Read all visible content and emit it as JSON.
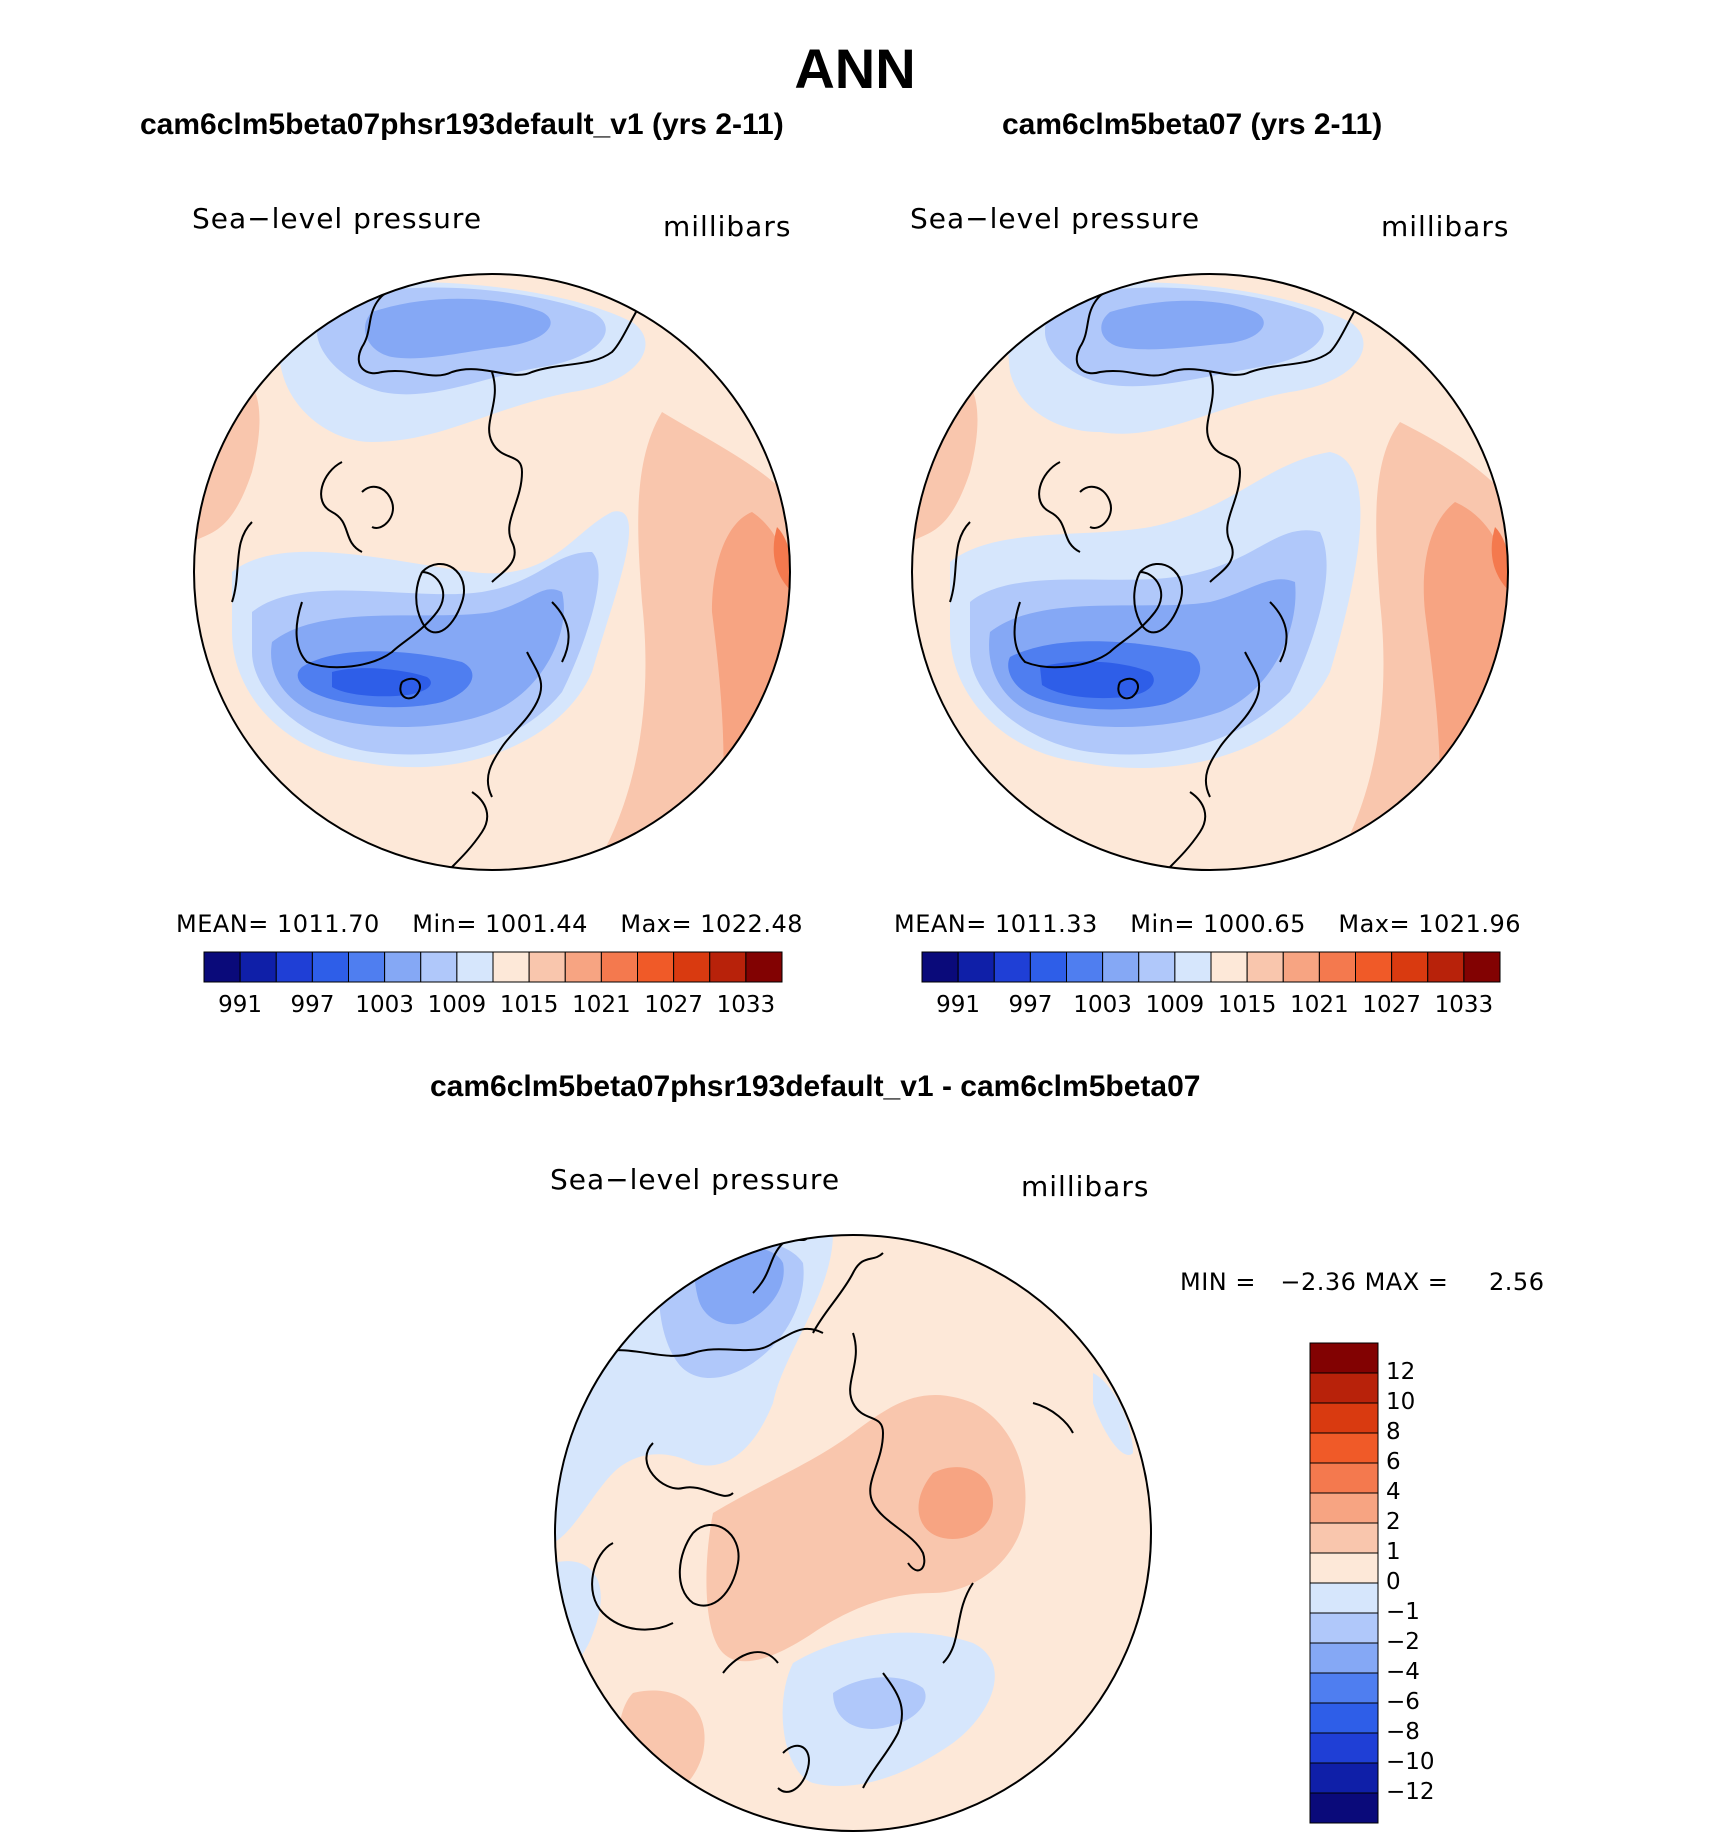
{
  "title": "ANN",
  "panels": [
    {
      "case_title": "cam6clm5beta07phsr193default_v1 (yrs 2-11)",
      "variable": "Sea−level pressure",
      "units": "millibars",
      "stats": {
        "mean_label": "MEAN=",
        "mean": "1011.70",
        "min_label": "Min=",
        "min": "1001.44",
        "max_label": "Max=",
        "max": "1022.48"
      }
    },
    {
      "case_title": "cam6clm5beta07 (yrs 2-11)",
      "variable": "Sea−level pressure",
      "units": "millibars",
      "stats": {
        "mean_label": "MEAN=",
        "mean": "1011.33",
        "min_label": "Min=",
        "min": "1000.65",
        "max_label": "Max=",
        "max": "1021.96"
      }
    }
  ],
  "difference": {
    "title": "cam6clm5beta07phsr193default_v1 - cam6clm5beta07",
    "variable": "Sea−level pressure",
    "units": "millibars",
    "stats": {
      "min_label": "MIN =",
      "min": "−2.36",
      "max_label": "MAX =",
      "max": "2.56"
    }
  },
  "colorbar_top": {
    "colors": [
      "#0a0a7a",
      "#0f1fa8",
      "#1f3fd6",
      "#2e5ee8",
      "#4f7ef0",
      "#85a8f5",
      "#b0c8fa",
      "#d6e6fc",
      "#fde8d8",
      "#f9c6ad",
      "#f7a482",
      "#f4794e",
      "#f05a28",
      "#d93a10",
      "#b8220a",
      "#820202"
    ],
    "tick_labels": [
      "991",
      "997",
      "1003",
      "1009",
      "1015",
      "1021",
      "1027",
      "1033"
    ]
  },
  "colorbar_diff": {
    "colors_top_to_bottom": [
      "#820202",
      "#b8220a",
      "#d93a10",
      "#f05a28",
      "#f4794e",
      "#f7a482",
      "#f9c6ad",
      "#fde8d8",
      "#d6e6fc",
      "#b0c8fa",
      "#85a8f5",
      "#4f7ef0",
      "#2e5ee8",
      "#1f3fd6",
      "#0f1fa8",
      "#0a0a7a"
    ],
    "tick_labels": [
      "12",
      "10",
      "8",
      "6",
      "4",
      "2",
      "1",
      "0",
      "−1",
      "−2",
      "−4",
      "−6",
      "−8",
      "−10",
      "−12"
    ]
  },
  "map_colors": {
    "p1": "#fde8d8",
    "p2": "#f9c6ad",
    "p3": "#f7a482",
    "p4": "#f4794e",
    "m0": "#d6e6fc",
    "m1": "#b0c8fa",
    "m2": "#85a8f5",
    "m3": "#4f7ef0",
    "m4": "#2e5ee8"
  }
}
